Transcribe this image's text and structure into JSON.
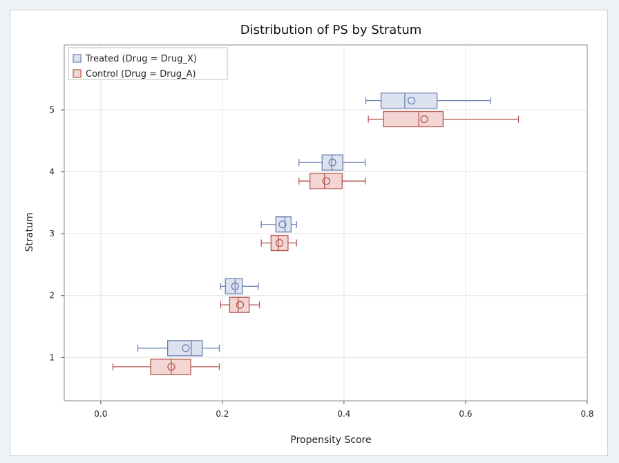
{
  "chart_data": {
    "type": "boxplot",
    "title": "Distribution of PS by Stratum",
    "xlabel": "Propensity Score",
    "ylabel": "Stratum",
    "xlim": [
      -0.06,
      0.8
    ],
    "ylim": [
      0.3,
      6.05
    ],
    "xticks": [
      "0.0",
      "0.2",
      "0.4",
      "0.6",
      "0.8"
    ],
    "yticks": [
      "1",
      "2",
      "3",
      "4",
      "5"
    ],
    "grid": true,
    "legend_position": "top-left",
    "series": [
      {
        "name": "Treated (Drug = Drug_X)",
        "stroke": "#6a7fb5",
        "fill": "#dde2ef",
        "offset": 0.15,
        "boxes": [
          {
            "stratum": 1,
            "whisker_low": 0.061,
            "q1": 0.11,
            "median": 0.149,
            "q3": 0.167,
            "whisker_high": 0.195,
            "mean": 0.14
          },
          {
            "stratum": 2,
            "whisker_low": 0.197,
            "q1": 0.205,
            "median": 0.221,
            "q3": 0.233,
            "whisker_high": 0.259,
            "mean": 0.221
          },
          {
            "stratum": 3,
            "whisker_low": 0.264,
            "q1": 0.288,
            "median": 0.303,
            "q3": 0.313,
            "whisker_high": 0.322,
            "mean": 0.299
          },
          {
            "stratum": 4,
            "whisker_low": 0.326,
            "q1": 0.364,
            "median": 0.38,
            "q3": 0.398,
            "whisker_high": 0.435,
            "mean": 0.381
          },
          {
            "stratum": 5,
            "whisker_low": 0.436,
            "q1": 0.461,
            "median": 0.5,
            "q3": 0.553,
            "whisker_high": 0.641,
            "mean": 0.511
          }
        ]
      },
      {
        "name": "Control (Drug = Drug_A)",
        "stroke": "#b5564e",
        "fill": "#f3d6d3",
        "offset": -0.15,
        "boxes": [
          {
            "stratum": 1,
            "whisker_low": 0.02,
            "q1": 0.082,
            "median": 0.116,
            "q3": 0.148,
            "whisker_high": 0.195,
            "mean": 0.116
          },
          {
            "stratum": 2,
            "whisker_low": 0.197,
            "q1": 0.212,
            "median": 0.226,
            "q3": 0.244,
            "whisker_high": 0.261,
            "mean": 0.229
          },
          {
            "stratum": 3,
            "whisker_low": 0.264,
            "q1": 0.28,
            "median": 0.292,
            "q3": 0.308,
            "whisker_high": 0.322,
            "mean": 0.294
          },
          {
            "stratum": 4,
            "whisker_low": 0.326,
            "q1": 0.344,
            "median": 0.368,
            "q3": 0.397,
            "whisker_high": 0.435,
            "mean": 0.371
          },
          {
            "stratum": 5,
            "whisker_low": 0.44,
            "q1": 0.465,
            "median": 0.523,
            "q3": 0.563,
            "whisker_high": 0.687,
            "mean": 0.532
          }
        ]
      }
    ]
  }
}
